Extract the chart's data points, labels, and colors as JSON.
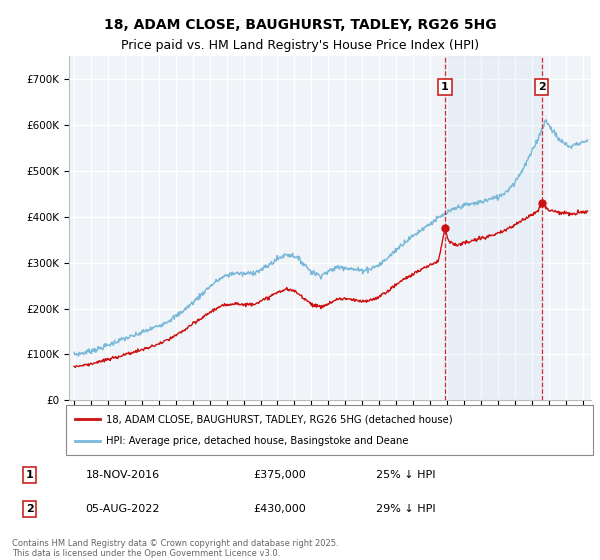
{
  "title": "18, ADAM CLOSE, BAUGHURST, TADLEY, RG26 5HG",
  "subtitle": "Price paid vs. HM Land Registry's House Price Index (HPI)",
  "ylim": [
    0,
    750000
  ],
  "yticks": [
    0,
    100000,
    200000,
    300000,
    400000,
    500000,
    600000,
    700000
  ],
  "ytick_labels": [
    "£0",
    "£100K",
    "£200K",
    "£300K",
    "£400K",
    "£500K",
    "£600K",
    "£700K"
  ],
  "xlim_start": 1994.7,
  "xlim_end": 2025.5,
  "background_color": "#ffffff",
  "plot_bg_color": "#f0f4f8",
  "grid_color": "#ffffff",
  "hpi_color": "#7ab8d9",
  "price_color": "#cc1111",
  "marker1_x": 2016.88,
  "marker2_x": 2022.59,
  "marker1_y": 375000,
  "marker2_y": 430000,
  "legend_line1": "18, ADAM CLOSE, BAUGHURST, TADLEY, RG26 5HG (detached house)",
  "legend_line2": "HPI: Average price, detached house, Basingstoke and Deane",
  "annotation1_date": "18-NOV-2016",
  "annotation1_price": "£375,000",
  "annotation1_hpi": "25% ↓ HPI",
  "annotation2_date": "05-AUG-2022",
  "annotation2_price": "£430,000",
  "annotation2_hpi": "29% ↓ HPI",
  "footer": "Contains HM Land Registry data © Crown copyright and database right 2025.\nThis data is licensed under the Open Government Licence v3.0.",
  "title_fontsize": 10,
  "subtitle_fontsize": 9,
  "hpi_anchors": [
    [
      1995.0,
      100000
    ],
    [
      1995.5,
      103000
    ],
    [
      1996.0,
      108000
    ],
    [
      1996.5,
      113000
    ],
    [
      1997.0,
      120000
    ],
    [
      1997.5,
      128000
    ],
    [
      1998.0,
      135000
    ],
    [
      1998.5,
      140000
    ],
    [
      1999.0,
      148000
    ],
    [
      1999.5,
      155000
    ],
    [
      2000.0,
      163000
    ],
    [
      2000.5,
      172000
    ],
    [
      2001.0,
      183000
    ],
    [
      2001.5,
      197000
    ],
    [
      2002.0,
      213000
    ],
    [
      2002.5,
      230000
    ],
    [
      2003.0,
      248000
    ],
    [
      2003.5,
      262000
    ],
    [
      2004.0,
      272000
    ],
    [
      2004.5,
      278000
    ],
    [
      2005.0,
      275000
    ],
    [
      2005.5,
      278000
    ],
    [
      2006.0,
      283000
    ],
    [
      2006.5,
      295000
    ],
    [
      2007.0,
      308000
    ],
    [
      2007.5,
      318000
    ],
    [
      2008.0,
      315000
    ],
    [
      2008.5,
      300000
    ],
    [
      2009.0,
      280000
    ],
    [
      2009.5,
      272000
    ],
    [
      2010.0,
      280000
    ],
    [
      2010.5,
      290000
    ],
    [
      2011.0,
      290000
    ],
    [
      2011.5,
      285000
    ],
    [
      2012.0,
      283000
    ],
    [
      2012.5,
      287000
    ],
    [
      2013.0,
      295000
    ],
    [
      2013.5,
      310000
    ],
    [
      2014.0,
      328000
    ],
    [
      2014.5,
      345000
    ],
    [
      2015.0,
      358000
    ],
    [
      2015.5,
      372000
    ],
    [
      2016.0,
      385000
    ],
    [
      2016.5,
      397000
    ],
    [
      2017.0,
      408000
    ],
    [
      2017.5,
      418000
    ],
    [
      2018.0,
      425000
    ],
    [
      2018.5,
      428000
    ],
    [
      2019.0,
      432000
    ],
    [
      2019.5,
      438000
    ],
    [
      2020.0,
      442000
    ],
    [
      2020.5,
      455000
    ],
    [
      2021.0,
      475000
    ],
    [
      2021.5,
      505000
    ],
    [
      2022.0,
      540000
    ],
    [
      2022.3,
      565000
    ],
    [
      2022.6,
      590000
    ],
    [
      2022.8,
      610000
    ],
    [
      2023.0,
      600000
    ],
    [
      2023.3,
      585000
    ],
    [
      2023.6,
      568000
    ],
    [
      2024.0,
      558000
    ],
    [
      2024.3,
      552000
    ],
    [
      2024.6,
      558000
    ],
    [
      2025.0,
      562000
    ],
    [
      2025.3,
      565000
    ]
  ],
  "price_anchors": [
    [
      1995.0,
      74000
    ],
    [
      1995.5,
      76000
    ],
    [
      1996.0,
      80000
    ],
    [
      1996.5,
      84000
    ],
    [
      1997.0,
      89000
    ],
    [
      1997.5,
      94000
    ],
    [
      1998.0,
      100000
    ],
    [
      1998.5,
      105000
    ],
    [
      1999.0,
      110000
    ],
    [
      1999.5,
      116000
    ],
    [
      2000.0,
      123000
    ],
    [
      2000.5,
      131000
    ],
    [
      2001.0,
      141000
    ],
    [
      2001.5,
      153000
    ],
    [
      2002.0,
      166000
    ],
    [
      2002.5,
      178000
    ],
    [
      2003.0,
      192000
    ],
    [
      2003.5,
      202000
    ],
    [
      2004.0,
      208000
    ],
    [
      2004.5,
      212000
    ],
    [
      2005.0,
      208000
    ],
    [
      2005.5,
      210000
    ],
    [
      2006.0,
      215000
    ],
    [
      2006.5,
      225000
    ],
    [
      2007.0,
      235000
    ],
    [
      2007.5,
      242000
    ],
    [
      2008.0,
      238000
    ],
    [
      2008.5,
      225000
    ],
    [
      2009.0,
      210000
    ],
    [
      2009.5,
      203000
    ],
    [
      2010.0,
      210000
    ],
    [
      2010.5,
      220000
    ],
    [
      2011.0,
      222000
    ],
    [
      2011.5,
      218000
    ],
    [
      2012.0,
      215000
    ],
    [
      2012.5,
      218000
    ],
    [
      2013.0,
      226000
    ],
    [
      2013.5,
      238000
    ],
    [
      2014.0,
      252000
    ],
    [
      2014.5,
      265000
    ],
    [
      2015.0,
      275000
    ],
    [
      2015.5,
      285000
    ],
    [
      2016.0,
      295000
    ],
    [
      2016.5,
      304000
    ],
    [
      2016.88,
      375000
    ],
    [
      2017.1,
      348000
    ],
    [
      2017.5,
      338000
    ],
    [
      2018.0,
      342000
    ],
    [
      2018.5,
      347000
    ],
    [
      2019.0,
      353000
    ],
    [
      2019.5,
      358000
    ],
    [
      2020.0,
      362000
    ],
    [
      2020.5,
      372000
    ],
    [
      2021.0,
      382000
    ],
    [
      2021.5,
      393000
    ],
    [
      2022.0,
      405000
    ],
    [
      2022.4,
      415000
    ],
    [
      2022.59,
      430000
    ],
    [
      2022.7,
      425000
    ],
    [
      2022.9,
      418000
    ],
    [
      2023.0,
      415000
    ],
    [
      2023.3,
      412000
    ],
    [
      2023.6,
      410000
    ],
    [
      2024.0,
      408000
    ],
    [
      2024.3,
      405000
    ],
    [
      2024.6,
      407000
    ],
    [
      2025.0,
      410000
    ],
    [
      2025.3,
      412000
    ]
  ]
}
